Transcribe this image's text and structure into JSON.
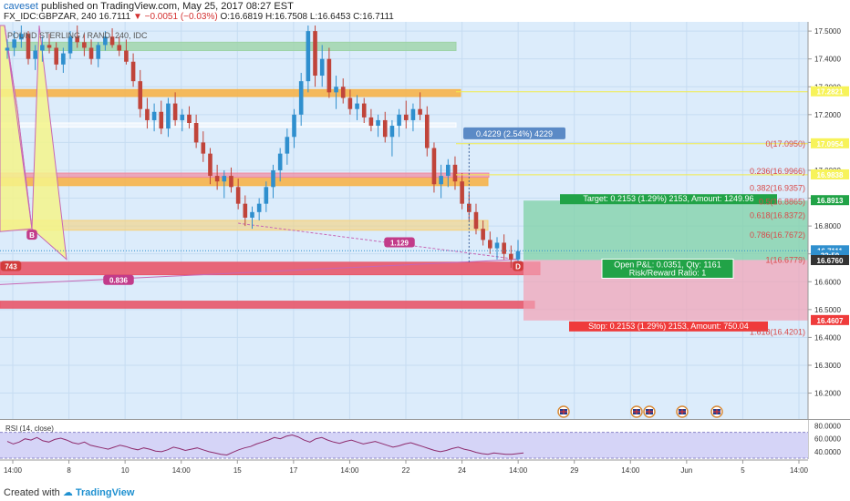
{
  "header": {
    "author": "caveset",
    "published_text": "published on TradingView.com, May 25, 2017 08:27 EST",
    "symbol": "FX_IDC:GBPZAR, 240",
    "last": "16.7111",
    "change": "▼ −0.0051 (−0.03%)",
    "open": "O:16.6819",
    "high": "H:16.7508",
    "low": "L:16.6453",
    "close": "C:16.7111"
  },
  "chart_title_overlay": "POUND STERLING / RAND, 240, IDC",
  "footer": {
    "created_with": "Created with",
    "brand": "TradingView"
  },
  "colors": {
    "up": "#2f8fce",
    "down": "#c0443a",
    "plot_bg": "#dcecfb",
    "pattern_fill": "#f5f58a",
    "fib_text": "#d84a4a",
    "target_green": "#21a347",
    "stop_red": "#ef3b3b"
  },
  "chart_data": {
    "type": "candlestick",
    "y_axis": {
      "range": [
        16.12,
        17.52
      ],
      "ticks": [
        17.5,
        17.4,
        17.3,
        17.2,
        17.1,
        17.0,
        16.9,
        16.8,
        16.7,
        16.6,
        16.5,
        16.4,
        16.3,
        16.2
      ]
    },
    "x_axis": {
      "ticks": [
        "14:00",
        "8",
        "10",
        "14:00",
        "15",
        "17",
        "14:00",
        "22",
        "24",
        "14:00",
        "29",
        "14:00",
        "Jun",
        "5",
        "14:00"
      ]
    },
    "price_tags": [
      {
        "label": "17.2821",
        "value": 17.2821,
        "color": "#f7f35a",
        "text_color": "#000"
      },
      {
        "label": "17.0954",
        "value": 17.0954,
        "color": "#f7f35a",
        "text_color": "#000"
      },
      {
        "label": "16.9838",
        "value": 16.9838,
        "color": "#f7f35a",
        "text_color": "#000"
      },
      {
        "label": "16.8913",
        "value": 16.8913,
        "color": "#21a347",
        "text_color": "#fff"
      },
      {
        "label": "16.7111",
        "value": 16.7111,
        "color": "#2f8fce",
        "text_color": "#fff"
      },
      {
        "label": "32:50",
        "value": 16.6935,
        "color": "#2f8fce",
        "text_color": "#fff"
      },
      {
        "label": "16.6760",
        "value": 16.676,
        "color": "#333333",
        "text_color": "#fff"
      },
      {
        "label": "16.4607",
        "value": 16.4607,
        "color": "#ef3b3b",
        "text_color": "#fff"
      }
    ],
    "fib_levels": [
      {
        "label": "0(17.0950)",
        "value": 17.095
      },
      {
        "label": "0.236(16.9966)",
        "value": 16.9966
      },
      {
        "label": "0.382(16.9357)",
        "value": 16.9357
      },
      {
        "label": "0.5(16.8865)",
        "value": 16.8865
      },
      {
        "label": "0.618(16.8372)",
        "value": 16.8372
      },
      {
        "label": "0.786(16.7672)",
        "value": 16.7672
      },
      {
        "label": "1(16.6779)",
        "value": 16.6779
      },
      {
        "label": "1.618(16.4201)",
        "value": 16.4201
      }
    ],
    "pattern_labels": [
      "B",
      "D",
      "1.129",
      "0.836",
      "743"
    ],
    "measure_label": "0.4229 (2.54%) 4229",
    "target_label": "Target: 0.2153 (1.29%) 2153, Amount: 1249.96",
    "stop_label": "Stop: 0.2153 (1.29%) 2153, Amount: 750.04",
    "position_pl": "Open P&L: 0.0351, Qty: 1161",
    "position_rr": "Risk/Reward Ratio: 1",
    "rsi": {
      "label": "RSI (14, close)",
      "ticks": [
        "80.0000",
        "60.0000",
        "40.0000"
      ],
      "range": [
        30,
        85
      ],
      "upper": 70,
      "lower": 30,
      "values": [
        56,
        52,
        55,
        60,
        58,
        62,
        57,
        55,
        59,
        61,
        58,
        54,
        52,
        55,
        50,
        48,
        46,
        44,
        47,
        50,
        48,
        45,
        43,
        46,
        44,
        41,
        40,
        43,
        47,
        45,
        42,
        44,
        46,
        43,
        40,
        38,
        36,
        35,
        39,
        43,
        46,
        48,
        52,
        55,
        58,
        62,
        60,
        64,
        66,
        63,
        58,
        55,
        60,
        62,
        58,
        55,
        53,
        56,
        58,
        55,
        52,
        54,
        56,
        53,
        50,
        47,
        49,
        52,
        54,
        51,
        48,
        45,
        42,
        40,
        42,
        45,
        47,
        44,
        42,
        39,
        37,
        36,
        38,
        37,
        36,
        36,
        37,
        38
      ]
    },
    "candles": [
      [
        17.43,
        17.47,
        17.4,
        17.44
      ],
      [
        17.44,
        17.5,
        17.41,
        17.47
      ],
      [
        17.47,
        17.52,
        17.44,
        17.49
      ],
      [
        17.49,
        17.5,
        17.38,
        17.4
      ],
      [
        17.4,
        17.45,
        17.36,
        17.43
      ],
      [
        17.43,
        17.48,
        17.39,
        17.45
      ],
      [
        17.45,
        17.49,
        17.42,
        17.44
      ],
      [
        17.44,
        17.46,
        17.36,
        17.38
      ],
      [
        17.38,
        17.44,
        17.35,
        17.42
      ],
      [
        17.42,
        17.5,
        17.4,
        17.48
      ],
      [
        17.48,
        17.52,
        17.44,
        17.46
      ],
      [
        17.46,
        17.49,
        17.41,
        17.44
      ],
      [
        17.44,
        17.47,
        17.38,
        17.4
      ],
      [
        17.4,
        17.46,
        17.37,
        17.45
      ],
      [
        17.45,
        17.5,
        17.43,
        17.48
      ],
      [
        17.48,
        17.51,
        17.44,
        17.45
      ],
      [
        17.45,
        17.48,
        17.41,
        17.43
      ],
      [
        17.43,
        17.47,
        17.38,
        17.39
      ],
      [
        17.39,
        17.42,
        17.3,
        17.32
      ],
      [
        17.32,
        17.36,
        17.19,
        17.22
      ],
      [
        17.22,
        17.26,
        17.15,
        17.18
      ],
      [
        17.18,
        17.24,
        17.14,
        17.21
      ],
      [
        17.21,
        17.25,
        17.13,
        17.15
      ],
      [
        17.15,
        17.26,
        17.12,
        17.24
      ],
      [
        17.24,
        17.28,
        17.16,
        17.18
      ],
      [
        17.18,
        17.22,
        17.14,
        17.2
      ],
      [
        17.2,
        17.23,
        17.15,
        17.17
      ],
      [
        17.17,
        17.2,
        17.08,
        17.1
      ],
      [
        17.1,
        17.14,
        17.03,
        17.06
      ],
      [
        17.06,
        17.08,
        16.95,
        16.98
      ],
      [
        16.98,
        17.02,
        16.93,
        16.96
      ],
      [
        16.96,
        17.0,
        16.9,
        16.98
      ],
      [
        16.98,
        17.01,
        16.92,
        16.94
      ],
      [
        16.94,
        16.97,
        16.86,
        16.88
      ],
      [
        16.88,
        16.91,
        16.8,
        16.83
      ],
      [
        16.83,
        16.87,
        16.79,
        16.85
      ],
      [
        16.85,
        16.9,
        16.82,
        16.88
      ],
      [
        16.88,
        16.96,
        16.85,
        16.94
      ],
      [
        16.94,
        17.02,
        16.9,
        17.0
      ],
      [
        17.0,
        17.08,
        16.96,
        17.06
      ],
      [
        17.06,
        17.15,
        17.02,
        17.12
      ],
      [
        17.12,
        17.22,
        17.08,
        17.2
      ],
      [
        17.2,
        17.35,
        17.16,
        17.32
      ],
      [
        17.32,
        17.52,
        17.28,
        17.5
      ],
      [
        17.5,
        17.52,
        17.3,
        17.34
      ],
      [
        17.34,
        17.45,
        17.3,
        17.4
      ],
      [
        17.4,
        17.44,
        17.26,
        17.28
      ],
      [
        17.28,
        17.34,
        17.22,
        17.3
      ],
      [
        17.3,
        17.33,
        17.24,
        17.26
      ],
      [
        17.26,
        17.29,
        17.2,
        17.22
      ],
      [
        17.22,
        17.27,
        17.18,
        17.24
      ],
      [
        17.24,
        17.26,
        17.17,
        17.19
      ],
      [
        17.19,
        17.22,
        17.14,
        17.16
      ],
      [
        17.16,
        17.2,
        17.12,
        17.18
      ],
      [
        17.18,
        17.21,
        17.1,
        17.12
      ],
      [
        17.12,
        17.18,
        17.05,
        17.16
      ],
      [
        17.16,
        17.22,
        17.12,
        17.2
      ],
      [
        17.2,
        17.25,
        17.15,
        17.18
      ],
      [
        17.18,
        17.24,
        17.14,
        17.22
      ],
      [
        17.22,
        17.28,
        17.18,
        17.2
      ],
      [
        17.2,
        17.23,
        17.05,
        17.08
      ],
      [
        17.08,
        17.1,
        16.92,
        16.95
      ],
      [
        16.95,
        17.02,
        16.9,
        16.98
      ],
      [
        16.98,
        17.04,
        16.94,
        17.02
      ],
      [
        17.02,
        17.05,
        16.93,
        16.96
      ],
      [
        16.96,
        16.99,
        16.86,
        16.88
      ],
      [
        16.88,
        16.92,
        16.82,
        16.85
      ],
      [
        16.85,
        16.88,
        16.77,
        16.79
      ],
      [
        16.79,
        16.82,
        16.73,
        16.75
      ],
      [
        16.75,
        16.78,
        16.7,
        16.72
      ],
      [
        16.72,
        16.76,
        16.68,
        16.74
      ],
      [
        16.74,
        16.77,
        16.68,
        16.7
      ],
      [
        16.7,
        16.73,
        16.65,
        16.68
      ],
      [
        16.68,
        16.75,
        16.65,
        16.71
      ]
    ]
  }
}
